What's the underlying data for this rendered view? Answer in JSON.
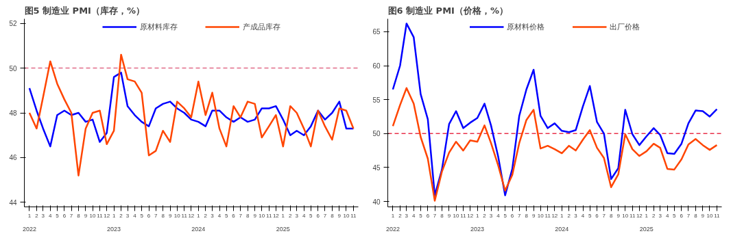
{
  "chart_data": [
    {
      "type": "line",
      "title": "图5  制造业 PMI（库存，%）",
      "x": [
        "2022-01",
        "2022-02",
        "2022-03",
        "2022-04",
        "2022-05",
        "2022-06",
        "2022-07",
        "2022-08",
        "2022-09",
        "2022-10",
        "2022-11",
        "2022-12",
        "2023-01",
        "2023-02",
        "2023-03",
        "2023-04",
        "2023-05",
        "2023-06",
        "2023-07",
        "2023-08",
        "2023-09",
        "2023-10",
        "2023-11",
        "2023-12",
        "2024-01",
        "2024-02",
        "2024-03",
        "2024-04",
        "2024-05",
        "2024-06",
        "2024-07",
        "2024-08",
        "2024-09",
        "2024-10",
        "2024-11",
        "2024-12",
        "2025-01",
        "2025-02",
        "2025-03",
        "2025-04",
        "2025-05",
        "2025-06",
        "2025-07",
        "2025-08",
        "2025-09",
        "2025-10",
        "2025-11"
      ],
      "series": [
        {
          "name": "原材料库存",
          "color": "#0000ff",
          "values": [
            49.1,
            48.1,
            47.3,
            46.5,
            47.9,
            48.1,
            47.9,
            48.0,
            47.6,
            47.7,
            46.7,
            47.1,
            49.6,
            49.8,
            48.3,
            47.9,
            47.6,
            47.4,
            48.2,
            48.4,
            48.5,
            48.2,
            48.0,
            47.7,
            47.6,
            47.4,
            48.1,
            48.1,
            47.8,
            47.6,
            47.8,
            47.6,
            47.7,
            48.2,
            48.2,
            48.3,
            47.7,
            47.0,
            47.2,
            47.0,
            47.4,
            48.1,
            47.7,
            48.0,
            48.5,
            47.3,
            47.3
          ]
        },
        {
          "name": "产成品库存",
          "color": "#ff4500",
          "values": [
            48.0,
            47.3,
            48.7,
            50.3,
            49.3,
            48.6,
            48.0,
            45.2,
            47.3,
            48.0,
            48.1,
            46.6,
            47.2,
            50.6,
            49.5,
            49.4,
            48.9,
            46.1,
            46.3,
            47.2,
            46.7,
            48.5,
            48.2,
            47.8,
            49.4,
            47.9,
            48.9,
            47.3,
            46.5,
            48.3,
            47.8,
            48.5,
            48.4,
            46.9,
            47.4,
            47.9,
            46.5,
            48.3,
            48.0,
            47.3,
            46.5,
            48.1,
            47.4,
            46.8,
            48.2,
            48.1,
            47.3
          ]
        }
      ],
      "ylim": [
        43.8,
        52.2
      ],
      "yticks": [
        44,
        46,
        48,
        50,
        52
      ],
      "xlim": [
        "2021-12-10",
        "2025-11-22"
      ],
      "xticks": [
        {
          "value": "2022-01",
          "label": "1"
        },
        {
          "value": "2022-02",
          "label": "2"
        },
        {
          "value": "2022-03",
          "label": "3"
        },
        {
          "value": "2022-04",
          "label": "4"
        },
        {
          "value": "2022-05",
          "label": "5"
        },
        {
          "value": "2022-06",
          "label": "6"
        },
        {
          "value": "2022-07",
          "label": "7"
        },
        {
          "value": "2022-08",
          "label": "8"
        },
        {
          "value": "2022-09",
          "label": "9"
        },
        {
          "value": "2022-10",
          "label": "10"
        },
        {
          "value": "2022-11",
          "label": "11"
        },
        {
          "value": "2022-12",
          "label": "12"
        },
        {
          "value": "2023-01",
          "label": "1"
        },
        {
          "value": "2023-02",
          "label": "2"
        },
        {
          "value": "2023-03",
          "label": "3"
        },
        {
          "value": "2023-04",
          "label": "4"
        },
        {
          "value": "2023-05",
          "label": "5"
        },
        {
          "value": "2023-06",
          "label": "6"
        },
        {
          "value": "2023-07",
          "label": "7"
        },
        {
          "value": "2023-08",
          "label": "8"
        },
        {
          "value": "2023-09",
          "label": "9"
        },
        {
          "value": "2023-10",
          "label": "10"
        },
        {
          "value": "2023-11",
          "label": "11"
        },
        {
          "value": "2023-12",
          "label": "12"
        },
        {
          "value": "2024-01",
          "label": "1"
        },
        {
          "value": "2024-02",
          "label": "2"
        },
        {
          "value": "2024-03",
          "label": "3"
        },
        {
          "value": "2024-04",
          "label": "4"
        },
        {
          "value": "2024-05",
          "label": "5"
        },
        {
          "value": "2024-06",
          "label": "6"
        },
        {
          "value": "2024-07",
          "label": "7"
        },
        {
          "value": "2024-08",
          "label": "8"
        },
        {
          "value": "2024-09",
          "label": "9"
        },
        {
          "value": "2024-10",
          "label": "10"
        },
        {
          "value": "2024-11",
          "label": "11"
        },
        {
          "value": "2024-12",
          "label": "12"
        },
        {
          "value": "2025-01",
          "label": "1"
        },
        {
          "value": "2025-02",
          "label": "2"
        },
        {
          "value": "2025-03",
          "label": "3"
        },
        {
          "value": "2025-04",
          "label": "4"
        },
        {
          "value": "2025-05",
          "label": "5"
        },
        {
          "value": "2025-06",
          "label": "6"
        },
        {
          "value": "2025-07",
          "label": "7"
        },
        {
          "value": "2025-08",
          "label": "8"
        },
        {
          "value": "2025-09",
          "label": "9"
        },
        {
          "value": "2025-10",
          "label": "10"
        },
        {
          "value": "2025-11",
          "label": "11"
        }
      ],
      "annotations": [
        "2022",
        "2023",
        "2024",
        "2025"
      ],
      "ref_lines": [
        {
          "axis": "y",
          "value": 50,
          "color": "#e06a86",
          "line_style": "dashed"
        }
      ],
      "legend": "top",
      "line_style": "solid"
    },
    {
      "type": "line",
      "title": "图6  制造业 PMI（价格，%）",
      "x": [
        "2022-01",
        "2022-02",
        "2022-03",
        "2022-04",
        "2022-05",
        "2022-06",
        "2022-07",
        "2022-08",
        "2022-09",
        "2022-10",
        "2022-11",
        "2022-12",
        "2023-01",
        "2023-02",
        "2023-03",
        "2023-04",
        "2023-05",
        "2023-06",
        "2023-07",
        "2023-08",
        "2023-09",
        "2023-10",
        "2023-11",
        "2023-12",
        "2024-01",
        "2024-02",
        "2024-03",
        "2024-04",
        "2024-05",
        "2024-06",
        "2024-07",
        "2024-08",
        "2024-09",
        "2024-10",
        "2024-11",
        "2024-12",
        "2025-01",
        "2025-02",
        "2025-03",
        "2025-04",
        "2025-05",
        "2025-06",
        "2025-07",
        "2025-08",
        "2025-09",
        "2025-10",
        "2025-11"
      ],
      "series": [
        {
          "name": "原材料价格",
          "color": "#0000ff",
          "values": [
            56.5,
            60.0,
            66.2,
            64.2,
            55.8,
            52.1,
            40.9,
            44.7,
            51.4,
            53.3,
            50.8,
            51.6,
            52.3,
            54.4,
            51.2,
            46.6,
            40.9,
            44.8,
            52.6,
            56.5,
            59.4,
            52.6,
            50.8,
            51.5,
            50.4,
            50.2,
            50.5,
            54.0,
            57.0,
            51.7,
            50.0,
            43.3,
            44.9,
            53.5,
            49.9,
            48.3,
            49.6,
            50.8,
            49.8,
            47.1,
            47.0,
            48.5,
            51.5,
            53.4,
            53.3,
            52.5,
            53.6
          ]
        },
        {
          "name": "出厂价格",
          "color": "#ff4500",
          "values": [
            51.1,
            54.2,
            56.7,
            54.4,
            49.5,
            46.3,
            40.1,
            44.4,
            47.2,
            48.8,
            47.5,
            49.0,
            48.8,
            51.2,
            48.6,
            45.3,
            41.6,
            43.9,
            48.6,
            52.0,
            53.5,
            47.8,
            48.2,
            47.7,
            47.1,
            48.2,
            47.5,
            49.1,
            50.5,
            47.9,
            46.4,
            42.1,
            44.0,
            49.9,
            47.7,
            46.7,
            47.4,
            48.5,
            47.9,
            44.8,
            44.7,
            46.2,
            48.4,
            49.2,
            48.3,
            47.6,
            48.3
          ]
        }
      ],
      "ylim": [
        39.2,
        66.9
      ],
      "yticks": [
        40,
        45,
        50,
        55,
        60,
        65
      ],
      "xlim": [
        "2021-12-10",
        "2025-11-22"
      ],
      "xticks": [
        {
          "value": "2022-01",
          "label": "1"
        },
        {
          "value": "2022-02",
          "label": "2"
        },
        {
          "value": "2022-03",
          "label": "3"
        },
        {
          "value": "2022-04",
          "label": "4"
        },
        {
          "value": "2022-05",
          "label": "5"
        },
        {
          "value": "2022-06",
          "label": "6"
        },
        {
          "value": "2022-07",
          "label": "7"
        },
        {
          "value": "2022-08",
          "label": "8"
        },
        {
          "value": "2022-09",
          "label": "9"
        },
        {
          "value": "2022-10",
          "label": "10"
        },
        {
          "value": "2022-11",
          "label": "11"
        },
        {
          "value": "2022-12",
          "label": "12"
        },
        {
          "value": "2023-01",
          "label": "1"
        },
        {
          "value": "2023-02",
          "label": "2"
        },
        {
          "value": "2023-03",
          "label": "3"
        },
        {
          "value": "2023-04",
          "label": "4"
        },
        {
          "value": "2023-05",
          "label": "5"
        },
        {
          "value": "2023-06",
          "label": "6"
        },
        {
          "value": "2023-07",
          "label": "7"
        },
        {
          "value": "2023-08",
          "label": "8"
        },
        {
          "value": "2023-09",
          "label": "9"
        },
        {
          "value": "2023-10",
          "label": "10"
        },
        {
          "value": "2023-11",
          "label": "11"
        },
        {
          "value": "2023-12",
          "label": "12"
        },
        {
          "value": "2024-01",
          "label": "1"
        },
        {
          "value": "2024-02",
          "label": "2"
        },
        {
          "value": "2024-03",
          "label": "3"
        },
        {
          "value": "2024-04",
          "label": "4"
        },
        {
          "value": "2024-05",
          "label": "5"
        },
        {
          "value": "2024-06",
          "label": "6"
        },
        {
          "value": "2024-07",
          "label": "7"
        },
        {
          "value": "2024-08",
          "label": "8"
        },
        {
          "value": "2024-09",
          "label": "9"
        },
        {
          "value": "2024-10",
          "label": "10"
        },
        {
          "value": "2024-11",
          "label": "11"
        },
        {
          "value": "2024-12",
          "label": "12"
        },
        {
          "value": "2025-01",
          "label": "1"
        },
        {
          "value": "2025-02",
          "label": "2"
        },
        {
          "value": "2025-03",
          "label": "3"
        },
        {
          "value": "2025-04",
          "label": "4"
        },
        {
          "value": "2025-05",
          "label": "5"
        },
        {
          "value": "2025-06",
          "label": "6"
        },
        {
          "value": "2025-07",
          "label": "7"
        },
        {
          "value": "2025-08",
          "label": "8"
        },
        {
          "value": "2025-09",
          "label": "9"
        },
        {
          "value": "2025-10",
          "label": "10"
        },
        {
          "value": "2025-11",
          "label": "11"
        }
      ],
      "annotations": [
        "2022",
        "2023",
        "2024",
        "2025"
      ],
      "ref_lines": [
        {
          "axis": "y",
          "value": 50,
          "color": "#e8304a",
          "line_style": "dashed"
        }
      ],
      "legend": "top",
      "line_style": "solid"
    }
  ]
}
